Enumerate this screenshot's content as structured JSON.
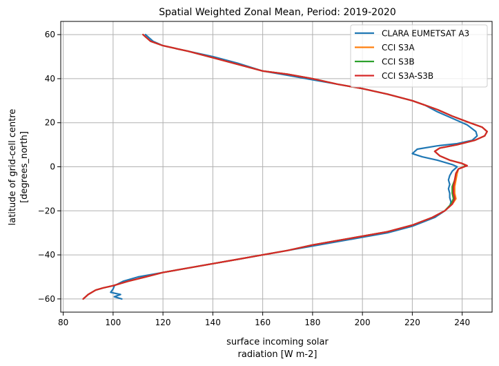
{
  "chart_data": {
    "type": "line",
    "title": "Spatial Weighted Zonal Mean, Period: 2019-2020",
    "xlabel_lines": [
      "surface incoming solar",
      "radiation [W m-2]"
    ],
    "ylabel_lines": [
      "latitude of grid-cell centre",
      "[degrees_north]"
    ],
    "xlim": [
      79,
      252
    ],
    "ylim": [
      -66,
      66
    ],
    "xticks": [
      80,
      100,
      120,
      140,
      160,
      180,
      200,
      220,
      240
    ],
    "yticks": [
      -60,
      -40,
      -20,
      0,
      20,
      40,
      60
    ],
    "grid": true,
    "legend_position": "top-right",
    "series": [
      {
        "name": "CLARA EUMETSAT A3",
        "color": "#1f77b4",
        "points": [
          [
            103.5,
            -60
          ],
          [
            100.5,
            -59
          ],
          [
            103,
            -58
          ],
          [
            99,
            -57
          ],
          [
            100,
            -55.5
          ],
          [
            100.5,
            -54
          ],
          [
            104,
            -52
          ],
          [
            110,
            -50
          ],
          [
            120,
            -48
          ],
          [
            130,
            -46
          ],
          [
            140,
            -44
          ],
          [
            150,
            -42
          ],
          [
            160,
            -40
          ],
          [
            170,
            -38
          ],
          [
            180,
            -36
          ],
          [
            190,
            -34
          ],
          [
            200,
            -32
          ],
          [
            210,
            -30
          ],
          [
            220,
            -27
          ],
          [
            229,
            -23
          ],
          [
            233,
            -20
          ],
          [
            235,
            -18
          ],
          [
            235.5,
            -16
          ],
          [
            235,
            -14
          ],
          [
            235,
            -12
          ],
          [
            234.5,
            -10
          ],
          [
            235,
            -8
          ],
          [
            234.5,
            -6
          ],
          [
            235,
            -4
          ],
          [
            236,
            -2
          ],
          [
            238,
            0
          ],
          [
            236,
            1
          ],
          [
            230,
            3
          ],
          [
            224,
            4.5
          ],
          [
            220,
            6
          ],
          [
            222,
            8
          ],
          [
            230,
            9.5
          ],
          [
            238,
            10.5
          ],
          [
            244,
            12
          ],
          [
            246,
            14
          ],
          [
            245.5,
            16
          ],
          [
            242,
            19
          ],
          [
            236,
            22
          ],
          [
            230,
            25
          ],
          [
            225,
            28
          ],
          [
            220,
            30
          ],
          [
            210,
            33
          ],
          [
            200,
            35.5
          ],
          [
            190,
            37.5
          ],
          [
            180,
            39.5
          ],
          [
            170,
            41.5
          ],
          [
            160,
            43.5
          ],
          [
            150,
            47
          ],
          [
            140,
            50
          ],
          [
            130,
            52.5
          ],
          [
            120,
            55
          ],
          [
            116,
            57
          ],
          [
            114,
            59
          ],
          [
            113,
            60
          ]
        ]
      },
      {
        "name": "CCI S3A",
        "color": "#ff7f0e",
        "points": [
          [
            88,
            -60
          ],
          [
            90,
            -58
          ],
          [
            93,
            -56
          ],
          [
            96,
            -55
          ],
          [
            100,
            -54
          ],
          [
            106,
            -52
          ],
          [
            113,
            -50
          ],
          [
            120,
            -48
          ],
          [
            130,
            -46
          ],
          [
            140,
            -44
          ],
          [
            150,
            -42
          ],
          [
            160,
            -40
          ],
          [
            170,
            -38
          ],
          [
            180,
            -35.5
          ],
          [
            190,
            -33.5
          ],
          [
            200,
            -31.5
          ],
          [
            210,
            -29.5
          ],
          [
            220,
            -26.5
          ],
          [
            228,
            -23
          ],
          [
            233,
            -20
          ],
          [
            236,
            -17
          ],
          [
            237.5,
            -14.5
          ],
          [
            237,
            -12
          ],
          [
            237,
            -9
          ],
          [
            237.5,
            -6
          ],
          [
            238,
            -3
          ],
          [
            238.5,
            -1
          ],
          [
            242,
            0.5
          ],
          [
            240,
            1.5
          ],
          [
            235,
            3
          ],
          [
            231,
            5
          ],
          [
            229,
            7
          ],
          [
            231,
            8.5
          ],
          [
            238,
            10
          ],
          [
            245,
            12
          ],
          [
            249,
            14
          ],
          [
            250,
            16
          ],
          [
            248,
            18
          ],
          [
            243,
            20
          ],
          [
            236,
            23
          ],
          [
            230,
            26
          ],
          [
            225,
            28
          ],
          [
            220,
            30
          ],
          [
            210,
            33
          ],
          [
            200,
            35.5
          ],
          [
            190,
            37.5
          ],
          [
            180,
            40
          ],
          [
            170,
            42
          ],
          [
            160,
            43.5
          ],
          [
            150,
            46.5
          ],
          [
            140,
            49.5
          ],
          [
            130,
            52.5
          ],
          [
            120,
            55
          ],
          [
            115,
            57
          ],
          [
            113,
            59
          ],
          [
            112,
            60
          ]
        ]
      },
      {
        "name": "CCI S3B",
        "color": "#2ca02c",
        "points": [
          [
            88,
            -60
          ],
          [
            90,
            -58
          ],
          [
            93,
            -56
          ],
          [
            96,
            -55
          ],
          [
            100,
            -54
          ],
          [
            106,
            -52
          ],
          [
            113,
            -50
          ],
          [
            120,
            -48
          ],
          [
            130,
            -46
          ],
          [
            140,
            -44
          ],
          [
            150,
            -42
          ],
          [
            160,
            -40
          ],
          [
            170,
            -38
          ],
          [
            180,
            -35.5
          ],
          [
            190,
            -33.5
          ],
          [
            200,
            -31.5
          ],
          [
            210,
            -29.5
          ],
          [
            220,
            -26.5
          ],
          [
            228,
            -23
          ],
          [
            233,
            -20
          ],
          [
            235.5,
            -17
          ],
          [
            236.5,
            -14.5
          ],
          [
            236,
            -12
          ],
          [
            236,
            -9
          ],
          [
            237,
            -6
          ],
          [
            237.5,
            -3
          ],
          [
            238.5,
            -1
          ],
          [
            241.5,
            0.5
          ],
          [
            240,
            1.5
          ],
          [
            235,
            3
          ],
          [
            231,
            5
          ],
          [
            229,
            7
          ],
          [
            231,
            8.5
          ],
          [
            238,
            10
          ],
          [
            245,
            12
          ],
          [
            249,
            14
          ],
          [
            250,
            16
          ],
          [
            248,
            18
          ],
          [
            243,
            20
          ],
          [
            236,
            23
          ],
          [
            230,
            26
          ],
          [
            225,
            28
          ],
          [
            220,
            30
          ],
          [
            210,
            33
          ],
          [
            200,
            35.5
          ],
          [
            190,
            37.5
          ],
          [
            180,
            40
          ],
          [
            170,
            42
          ],
          [
            160,
            43.5
          ],
          [
            150,
            46.5
          ],
          [
            140,
            49.5
          ],
          [
            130,
            52.5
          ],
          [
            120,
            55
          ],
          [
            115,
            57
          ],
          [
            113,
            59
          ],
          [
            112,
            60
          ]
        ]
      },
      {
        "name": "CCI S3A-S3B",
        "color": "#d62728",
        "points": [
          [
            88,
            -60
          ],
          [
            90,
            -58
          ],
          [
            93,
            -56
          ],
          [
            96,
            -55
          ],
          [
            100,
            -54
          ],
          [
            106,
            -52
          ],
          [
            113,
            -50
          ],
          [
            120,
            -48
          ],
          [
            130,
            -46
          ],
          [
            140,
            -44
          ],
          [
            150,
            -42
          ],
          [
            160,
            -40
          ],
          [
            170,
            -38
          ],
          [
            180,
            -35.5
          ],
          [
            190,
            -33.5
          ],
          [
            200,
            -31.5
          ],
          [
            210,
            -29.5
          ],
          [
            220,
            -26.5
          ],
          [
            228,
            -23
          ],
          [
            233,
            -20
          ],
          [
            236,
            -17
          ],
          [
            237,
            -14.5
          ],
          [
            236.5,
            -12
          ],
          [
            236.5,
            -9
          ],
          [
            237,
            -6
          ],
          [
            237.5,
            -3
          ],
          [
            238.5,
            -1
          ],
          [
            242,
            0.5
          ],
          [
            240,
            1.5
          ],
          [
            235,
            3
          ],
          [
            231,
            5
          ],
          [
            229,
            7
          ],
          [
            231,
            8.5
          ],
          [
            238,
            10
          ],
          [
            245,
            12
          ],
          [
            249,
            14
          ],
          [
            250,
            16
          ],
          [
            248,
            18
          ],
          [
            243,
            20
          ],
          [
            236,
            23
          ],
          [
            230,
            26
          ],
          [
            225,
            28
          ],
          [
            220,
            30
          ],
          [
            210,
            33
          ],
          [
            200,
            35.5
          ],
          [
            190,
            37.5
          ],
          [
            180,
            40
          ],
          [
            170,
            42
          ],
          [
            160,
            43.5
          ],
          [
            150,
            46.5
          ],
          [
            140,
            49.5
          ],
          [
            130,
            52.5
          ],
          [
            120,
            55
          ],
          [
            115,
            57
          ],
          [
            113,
            59
          ],
          [
            112,
            60
          ]
        ]
      }
    ]
  }
}
